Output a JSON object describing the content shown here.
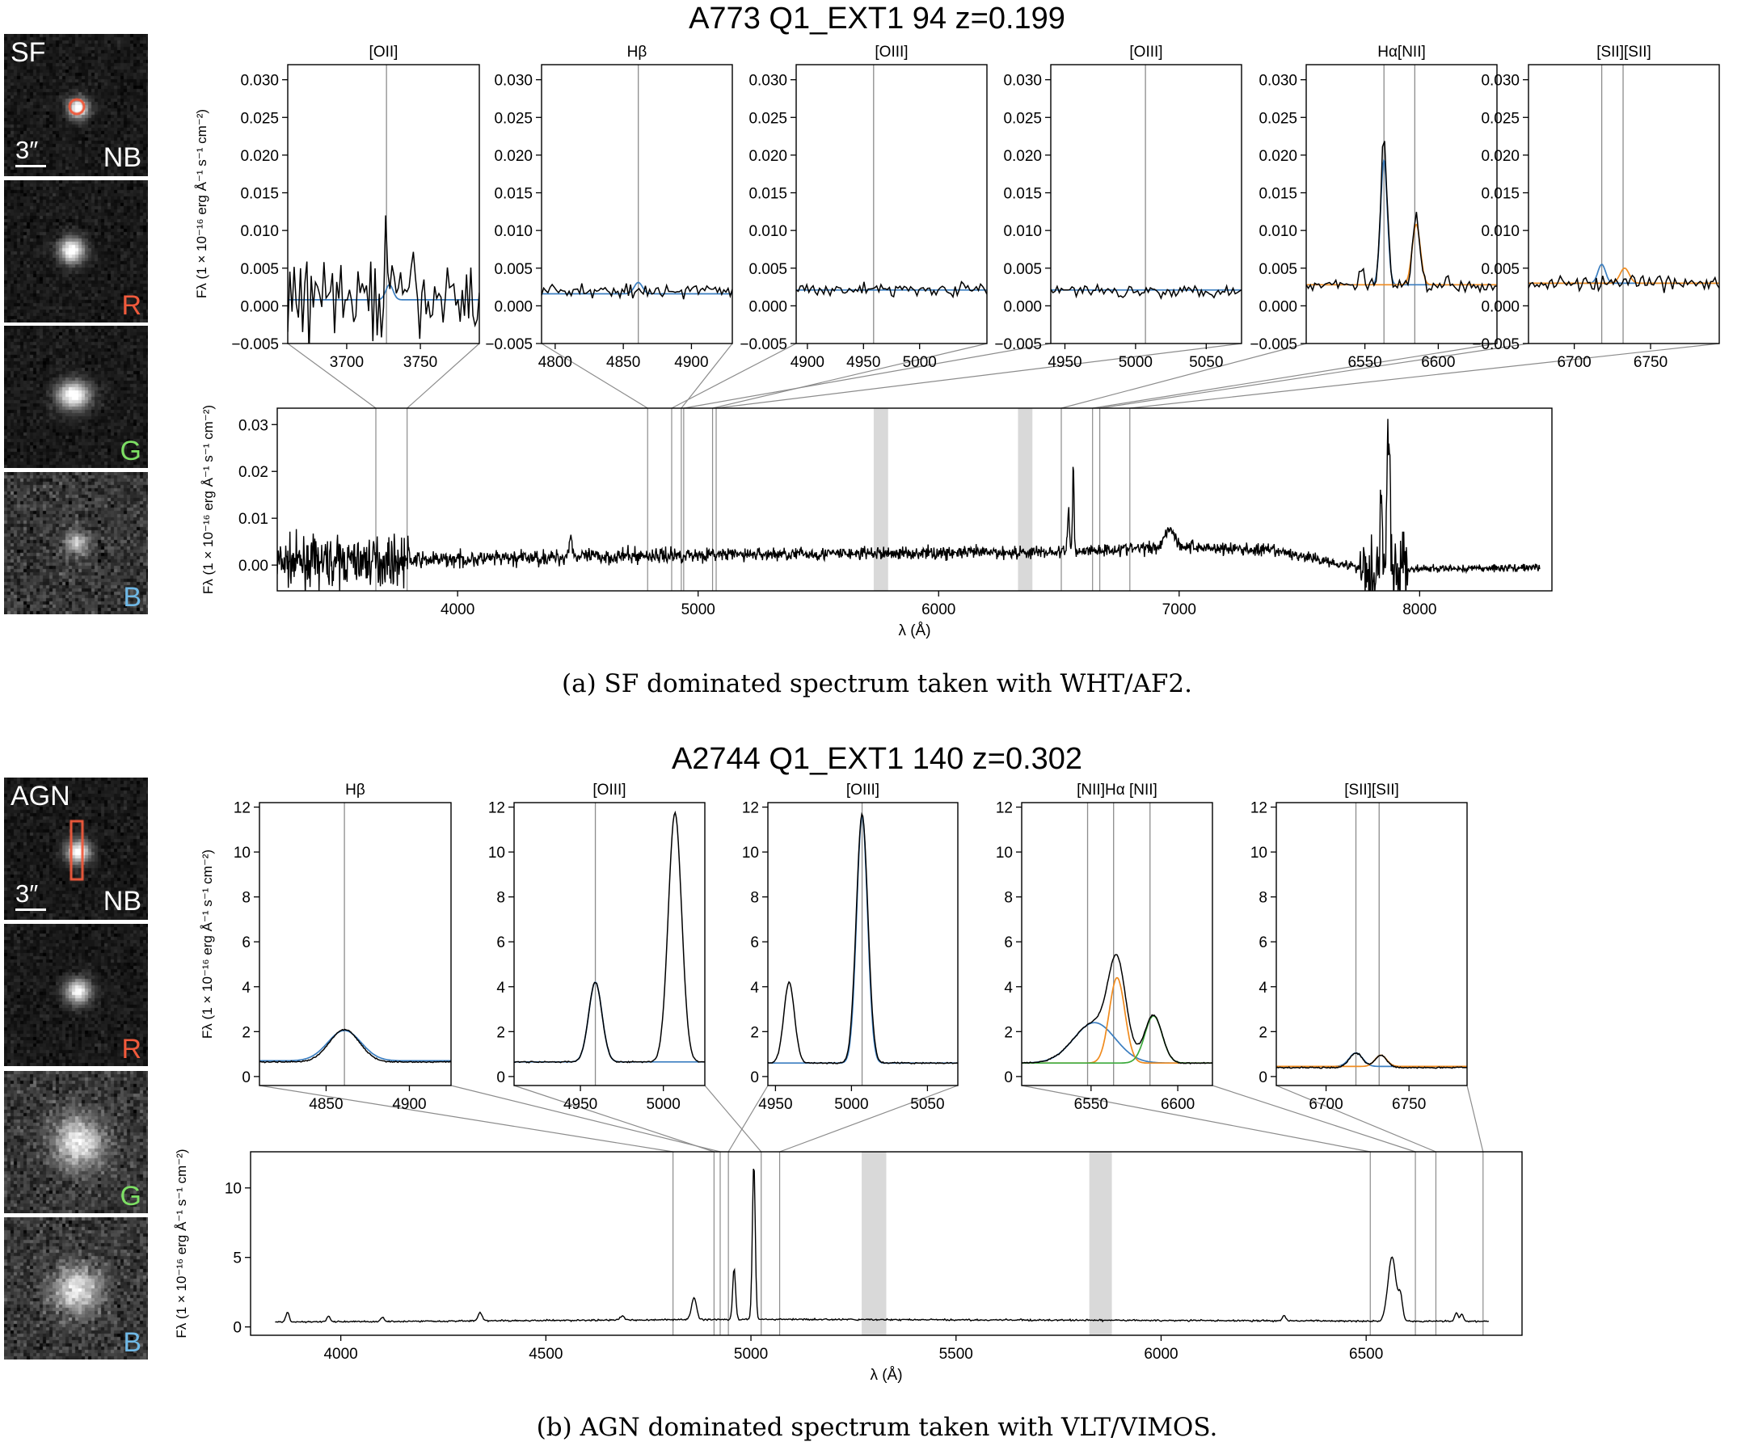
{
  "figure_a": {
    "title": "A773 Q1_EXT1 94 z=0.199",
    "caption": "(a) SF dominated spectrum taken with WHT/AF2.",
    "ylabel": "Fλ (1 × 10⁻¹⁶ erg Å⁻¹ s⁻¹ cm⁻²)",
    "xlabel": "λ (Å)",
    "stamps": [
      {
        "band": "NB",
        "corner_label": "SF",
        "scale": "3″",
        "band_color": "#ffffff",
        "marker": "circle",
        "marker_color": "#f05a3c"
      },
      {
        "band": "R",
        "band_color": "#f05a3c"
      },
      {
        "band": "G",
        "band_color": "#7ddf64"
      },
      {
        "band": "B",
        "band_color": "#6fb8e6"
      }
    ]
  },
  "figure_b": {
    "title": "A2744 Q1_EXT1 140 z=0.302",
    "caption": "(b) AGN dominated spectrum taken with VLT/VIMOS.",
    "ylabel": "Fλ (1 × 10⁻¹⁶ erg Å⁻¹ s⁻¹ cm⁻²)",
    "xlabel": "λ (Å)",
    "stamps": [
      {
        "band": "NB",
        "corner_label": "AGN",
        "scale": "3″",
        "band_color": "#ffffff",
        "marker": "slit",
        "marker_color": "#f05a3c"
      },
      {
        "band": "R",
        "band_color": "#f05a3c"
      },
      {
        "band": "G",
        "band_color": "#7ddf64"
      },
      {
        "band": "B",
        "band_color": "#6fb8e6"
      }
    ]
  },
  "colors": {
    "fit_blue": "#3b7ec0",
    "fit_orange": "#f08b1e",
    "fit_green": "#3caa3c",
    "line": "#000000",
    "marker_gray": "#8c8c8c",
    "telluric": "#d9d9d9"
  },
  "chart_data": [
    {
      "id": "a-main",
      "type": "line",
      "title": "A773 Q1_EXT1 94 z=0.199",
      "xlabel": "λ (Å)",
      "ylabel": "Fλ (1 × 10⁻¹⁶ erg Å⁻¹ s⁻¹ cm⁻²)",
      "xlim": [
        3250,
        8550
      ],
      "ylim": [
        -0.0055,
        0.0335
      ],
      "xticks": [
        4000,
        5000,
        6000,
        7000,
        8000
      ],
      "yticks": [
        0.0,
        0.01,
        0.02,
        0.03
      ],
      "yticklabels": [
        "0.00",
        "0.01",
        "0.02",
        "0.03"
      ],
      "shaded_bands": [
        [
          5730,
          5790
        ],
        [
          6330,
          6390
        ]
      ],
      "spectrum": {
        "noise_regions": [
          [
            3250,
            3800,
            0.0035
          ],
          [
            3800,
            5000,
            0.0012
          ],
          [
            5000,
            7400,
            0.001
          ],
          [
            7400,
            7750,
            0.0008
          ],
          [
            7750,
            7950,
            0.006
          ],
          [
            7950,
            8500,
            0.0006
          ]
        ],
        "continuum": [
          [
            3250,
            0.0005
          ],
          [
            5000,
            0.0022
          ],
          [
            6500,
            0.0028
          ],
          [
            7000,
            0.004
          ],
          [
            7400,
            0.003
          ],
          [
            7800,
            -0.001
          ],
          [
            8500,
            -0.0005
          ]
        ],
        "emission": [
          [
            4470,
            0.004,
            8
          ],
          [
            7870,
            0.029,
            6
          ],
          [
            7840,
            0.015,
            5
          ],
          [
            6540,
            0.009,
            4
          ],
          [
            6560,
            0.019,
            3
          ],
          [
            6960,
            0.004,
            20
          ]
        ]
      }
    },
    {
      "id": "a-oii",
      "type": "line",
      "title": "[OII]",
      "xlim": [
        3660,
        3790
      ],
      "ylim": [
        -0.005,
        0.032
      ],
      "xticks": [
        3700,
        3750
      ],
      "yticks": [
        -0.005,
        0.0,
        0.005,
        0.01,
        0.015,
        0.02,
        0.025,
        0.03
      ],
      "yticklabels": [
        "−0.005",
        "0.000",
        "0.005",
        "0.010",
        "0.015",
        "0.020",
        "0.025",
        "0.030"
      ],
      "line_markers": [
        3727
      ],
      "continuum": 0.001,
      "noise": 0.004,
      "fits": [
        {
          "color": "blue",
          "peaks": [
            [
              3729,
              0.002,
              2.5
            ]
          ],
          "base": 0.0008
        }
      ],
      "spikes": [
        [
          3727,
          0.012
        ]
      ]
    },
    {
      "id": "a-hb",
      "type": "line",
      "title": "Hβ",
      "xlim": [
        4790,
        4930
      ],
      "ylim": [
        -0.005,
        0.032
      ],
      "xticks": [
        4800,
        4850,
        4900
      ],
      "yticks": [
        -0.005,
        0.0,
        0.005,
        0.01,
        0.015,
        0.02,
        0.025,
        0.03
      ],
      "yticklabels": [
        "−0.005",
        "0.000",
        "0.005",
        "0.010",
        "0.015",
        "0.020",
        "0.025",
        "0.030"
      ],
      "line_markers": [
        4861
      ],
      "continuum": 0.002,
      "noise": 0.0006,
      "fits": [
        {
          "color": "blue",
          "peaks": [
            [
              4861,
              0.0015,
              3
            ]
          ],
          "base": 0.0016
        }
      ]
    },
    {
      "id": "a-oiii1",
      "type": "line",
      "title": "[OIII]",
      "xlim": [
        4890,
        5060
      ],
      "ylim": [
        -0.005,
        0.032
      ],
      "xticks": [
        4900,
        4950,
        5000
      ],
      "yticks": [
        -0.005,
        0.0,
        0.005,
        0.01,
        0.015,
        0.02,
        0.025,
        0.03
      ],
      "yticklabels": [
        "−0.005",
        "0.000",
        "0.005",
        "0.010",
        "0.015",
        "0.020",
        "0.025",
        "0.030"
      ],
      "line_markers": [
        4959
      ],
      "continuum": 0.0022,
      "noise": 0.0006,
      "fits": [
        {
          "color": "blue",
          "peaks": [],
          "base": 0.0021
        }
      ]
    },
    {
      "id": "a-oiii2",
      "type": "line",
      "title": "[OIII]",
      "xlim": [
        4940,
        5075
      ],
      "ylim": [
        -0.005,
        0.032
      ],
      "xticks": [
        4950,
        5000,
        5050
      ],
      "yticks": [
        -0.005,
        0.0,
        0.005,
        0.01,
        0.015,
        0.02,
        0.025,
        0.03
      ],
      "yticklabels": [
        "−0.005",
        "0.000",
        "0.005",
        "0.010",
        "0.015",
        "0.020",
        "0.025",
        "0.030"
      ],
      "line_markers": [
        5007
      ],
      "continuum": 0.002,
      "noise": 0.0006,
      "fits": [
        {
          "color": "blue",
          "peaks": [],
          "base": 0.0021
        }
      ]
    },
    {
      "id": "a-ha",
      "type": "line",
      "title": "Hα[NII]",
      "xlim": [
        6510,
        6640
      ],
      "ylim": [
        -0.005,
        0.032
      ],
      "xticks": [
        6550,
        6600
      ],
      "yticks": [
        -0.005,
        0.0,
        0.005,
        0.01,
        0.015,
        0.02,
        0.025,
        0.03
      ],
      "yticklabels": [
        "−0.005",
        "0.000",
        "0.005",
        "0.010",
        "0.015",
        "0.020",
        "0.025",
        "0.030"
      ],
      "line_markers": [
        6563,
        6584
      ],
      "continuum": 0.0028,
      "noise": 0.0007,
      "fits": [
        {
          "color": "blue",
          "peaks": [
            [
              6563,
              0.0165,
              2.3
            ]
          ],
          "base": 0.0028
        },
        {
          "color": "orange",
          "peaks": [
            [
              6585,
              0.008,
              2.8
            ]
          ],
          "base": 0.0028
        }
      ],
      "data_peaks": [
        [
          6563,
          0.0193,
          2.2
        ],
        [
          6585,
          0.009,
          2.5
        ],
        [
          6548,
          0.002,
          2
        ]
      ]
    },
    {
      "id": "a-sii",
      "type": "line",
      "title": "[SII][SII]",
      "xlim": [
        6670,
        6795
      ],
      "ylim": [
        -0.005,
        0.032
      ],
      "xticks": [
        6700,
        6750
      ],
      "yticks": [
        -0.005,
        0.0,
        0.005,
        0.01,
        0.015,
        0.02,
        0.025,
        0.03
      ],
      "yticklabels": [
        "−0.005",
        "0.000",
        "0.005",
        "0.010",
        "0.015",
        "0.020",
        "0.025",
        "0.030"
      ],
      "line_markers": [
        6718,
        6732
      ],
      "continuum": 0.003,
      "noise": 0.0007,
      "fits": [
        {
          "color": "blue",
          "peaks": [
            [
              6718,
              0.0025,
              2.5
            ]
          ],
          "base": 0.003
        },
        {
          "color": "orange",
          "peaks": [
            [
              6733,
              0.002,
              3
            ]
          ],
          "base": 0.003
        }
      ]
    },
    {
      "id": "b-main",
      "type": "line",
      "title": "A2744 Q1_EXT1 140 z=0.302",
      "xlabel": "λ (Å)",
      "ylabel": "Fλ (1 × 10⁻¹⁶ erg Å⁻¹ s⁻¹ cm⁻²)",
      "xlim": [
        3780,
        6880
      ],
      "ylim": [
        -0.6,
        12.6
      ],
      "xticks": [
        4000,
        4500,
        5000,
        5500,
        6000,
        6500
      ],
      "yticks": [
        0,
        5,
        10
      ],
      "yticklabels": [
        "0",
        "5",
        "10"
      ],
      "shaded_bands": [
        [
          5270,
          5330
        ],
        [
          5825,
          5880
        ]
      ],
      "spectrum": {
        "continuum": [
          [
            3840,
            0.35
          ],
          [
            5000,
            0.55
          ],
          [
            6800,
            0.4
          ]
        ],
        "emission": [
          [
            3870,
            0.7,
            4
          ],
          [
            3970,
            0.4,
            4
          ],
          [
            4102,
            0.3,
            4
          ],
          [
            4340,
            0.6,
            5
          ],
          [
            4686,
            0.3,
            5
          ],
          [
            4861,
            1.6,
            6
          ],
          [
            4959,
            3.7,
            3.5
          ],
          [
            5007,
            11.3,
            3.5
          ],
          [
            6300,
            0.4,
            4
          ],
          [
            6563,
            4.6,
            10
          ],
          [
            6584,
            1.6,
            5
          ],
          [
            6720,
            0.6,
            4
          ],
          [
            6733,
            0.5,
            4
          ]
        ],
        "noise": 0.04
      }
    },
    {
      "id": "b-hb",
      "type": "line",
      "title": "Hβ",
      "xlim": [
        4810,
        4925
      ],
      "ylim": [
        -0.4,
        12.2
      ],
      "xticks": [
        4850,
        4900
      ],
      "yticks": [
        0,
        2,
        4,
        6,
        8,
        10,
        12
      ],
      "yticklabels": [
        "0",
        "2",
        "4",
        "6",
        "8",
        "10",
        "12"
      ],
      "line_markers": [
        4861
      ],
      "data": {
        "base": 0.65,
        "peaks": [
          [
            4861,
            1.45,
            9
          ]
        ]
      },
      "fits": [
        {
          "color": "blue",
          "peaks": [
            [
              4861,
              1.35,
              10
            ]
          ],
          "base": 0.7
        }
      ]
    },
    {
      "id": "b-oiii1",
      "type": "line",
      "title": "[OIII]",
      "xlim": [
        4910,
        5025
      ],
      "ylim": [
        -0.4,
        12.2
      ],
      "xticks": [
        4950,
        5000
      ],
      "yticks": [
        0,
        2,
        4,
        6,
        8,
        10,
        12
      ],
      "yticklabels": [
        "0",
        "2",
        "4",
        "6",
        "8",
        "10",
        "12"
      ],
      "line_markers": [
        4959
      ],
      "data": {
        "base": 0.65,
        "peaks": [
          [
            4959,
            3.55,
            4
          ],
          [
            5007,
            11.1,
            4
          ]
        ]
      },
      "fits": [
        {
          "color": "blue",
          "peaks": [
            [
              4959,
              3.55,
              4
            ]
          ],
          "base": 0.65
        }
      ]
    },
    {
      "id": "b-oiii2",
      "type": "line",
      "title": "[OIII]",
      "xlim": [
        4945,
        5070
      ],
      "ylim": [
        -0.4,
        12.2
      ],
      "xticks": [
        4950,
        5000,
        5050
      ],
      "yticks": [
        0,
        2,
        4,
        6,
        8,
        10,
        12
      ],
      "yticklabels": [
        "0",
        "2",
        "4",
        "6",
        "8",
        "10",
        "12"
      ],
      "line_markers": [
        5007
      ],
      "data": {
        "base": 0.6,
        "peaks": [
          [
            4959,
            3.6,
            3.5
          ],
          [
            5007,
            11.1,
            3.8
          ]
        ]
      },
      "fits": [
        {
          "color": "blue",
          "peaks": [
            [
              5007,
              11.0,
              3.6
            ]
          ],
          "base": 0.6
        }
      ]
    },
    {
      "id": "b-ha",
      "type": "line",
      "title": "[NII]Hα [NII]",
      "xlim": [
        6510,
        6620
      ],
      "ylim": [
        -0.4,
        12.2
      ],
      "xticks": [
        6550,
        6600
      ],
      "yticks": [
        0,
        2,
        4,
        6,
        8,
        10,
        12
      ],
      "yticklabels": [
        "0",
        "2",
        "4",
        "6",
        "8",
        "10",
        "12"
      ],
      "line_markers": [
        6548,
        6563,
        6584
      ],
      "data": {
        "base": 0.6,
        "peaks": [
          [
            6552,
            1.8,
            12
          ],
          [
            6565,
            3.8,
            5
          ],
          [
            6586,
            2.1,
            5
          ]
        ]
      },
      "fits": [
        {
          "color": "blue",
          "peaks": [
            [
              6552,
              1.8,
              12
            ]
          ],
          "base": 0.6
        },
        {
          "color": "orange",
          "peaks": [
            [
              6565,
              3.8,
              4.5
            ]
          ],
          "base": 0.6
        },
        {
          "color": "green",
          "peaks": [
            [
              6586,
              2.1,
              5
            ]
          ],
          "base": 0.6
        }
      ]
    },
    {
      "id": "b-sii",
      "type": "line",
      "title": "[SII][SII]",
      "xlim": [
        6670,
        6785
      ],
      "ylim": [
        -0.4,
        12.2
      ],
      "xticks": [
        6700,
        6750
      ],
      "yticks": [
        0,
        2,
        4,
        6,
        8,
        10,
        12
      ],
      "yticklabels": [
        "0",
        "2",
        "4",
        "6",
        "8",
        "10",
        "12"
      ],
      "line_markers": [
        6718,
        6732
      ],
      "data": {
        "base": 0.4,
        "peaks": [
          [
            6718,
            0.65,
            4
          ],
          [
            6733,
            0.55,
            3.5
          ]
        ]
      },
      "fits": [
        {
          "color": "blue",
          "peaks": [
            [
              6718,
              0.6,
              4
            ]
          ],
          "base": 0.45
        },
        {
          "color": "orange",
          "peaks": [
            [
              6733,
              0.5,
              3.5
            ]
          ],
          "base": 0.45
        }
      ]
    }
  ]
}
